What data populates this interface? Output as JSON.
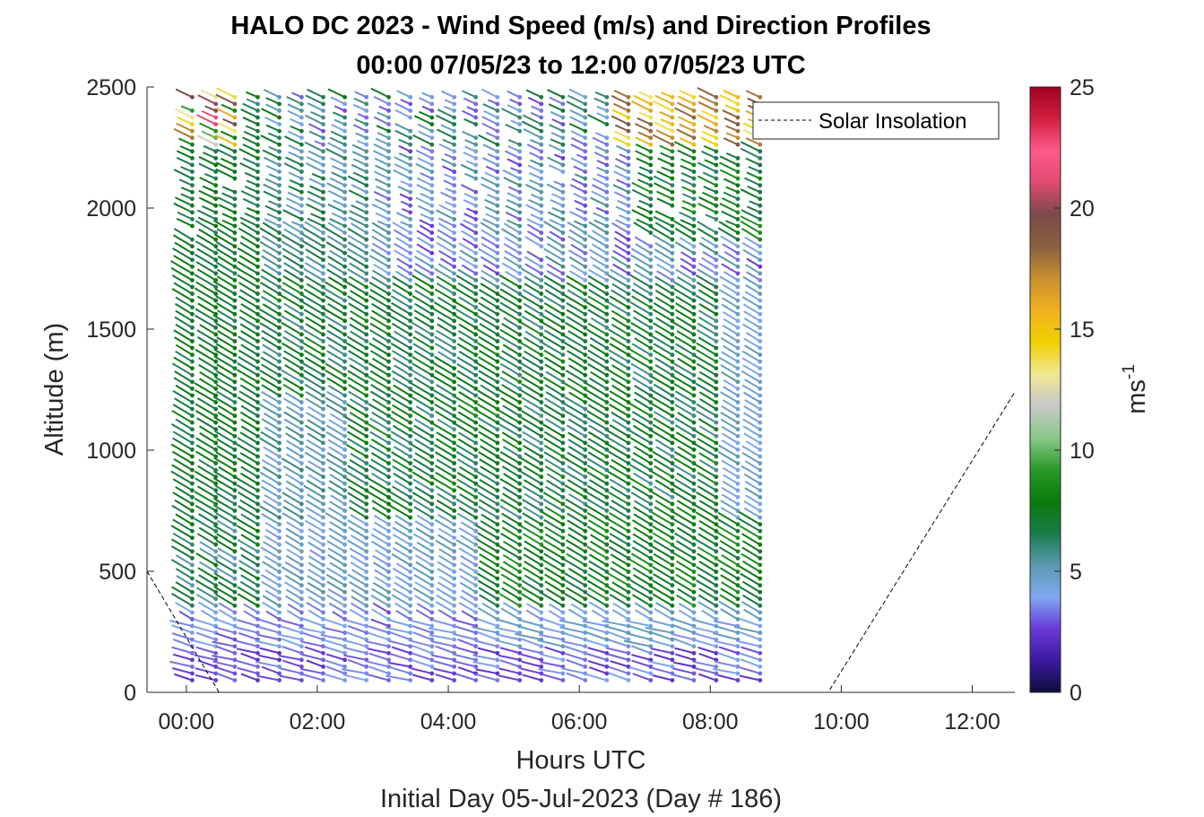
{
  "chart_data": {
    "type": "scatter",
    "subtype": "wind-barb-profile",
    "title_line1": "HALO DC 2023 - Wind Speed (m/s) and Direction Profiles",
    "title_line2": "00:00 07/05/23 to 12:00 07/05/23  UTC",
    "xlabel": "Hours UTC",
    "xlabel2": "Initial Day 05-Jul-2023 (Day # 186)",
    "ylabel": "Altitude (m)",
    "xlim": [
      -0.6,
      12.65
    ],
    "ylim": [
      0,
      2500
    ],
    "x_ticks": [
      0,
      2,
      4,
      6,
      8,
      10,
      12
    ],
    "x_tick_labels": [
      "00:00",
      "02:00",
      "04:00",
      "06:00",
      "08:00",
      "10:00",
      "12:00"
    ],
    "y_ticks": [
      0,
      500,
      1000,
      1500,
      2000,
      2500
    ],
    "y_tick_labels": [
      "0",
      "500",
      "1000",
      "1500",
      "2000",
      "2500"
    ],
    "colorbar": {
      "label": "ms",
      "label_superscript": "-1",
      "range": [
        0,
        25
      ],
      "ticks": [
        0,
        5,
        10,
        15,
        20,
        25
      ],
      "tick_labels": [
        "0",
        "5",
        "10",
        "15",
        "20",
        "25"
      ],
      "colors": [
        "#0d0d3a",
        "#3c1aa0",
        "#6a3ad8",
        "#7fa8f0",
        "#5a9ab0",
        "#1a7a4a",
        "#0a7a0a",
        "#2a9a2a",
        "#8ac88a",
        "#c8c8c8",
        "#f0e890",
        "#f0d000",
        "#f0b020",
        "#c89030",
        "#8a6040",
        "#7a4a4a",
        "#e04a70",
        "#ff5a8a",
        "#d02040",
        "#a00020"
      ]
    },
    "legend": {
      "position": "top-right",
      "entries": [
        "Solar Insolation"
      ]
    },
    "solar_insolation": {
      "x": [
        -0.6,
        0.5,
        9.8,
        12.65
      ],
      "y": [
        500,
        0,
        0,
        1240
      ]
    },
    "barb_profile_times": [
      0.09,
      0.45,
      0.74,
      1.09,
      1.42,
      1.76,
      2.09,
      2.42,
      2.75,
      3.09,
      3.42,
      3.75,
      4.09,
      4.42,
      4.75,
      5.09,
      5.42,
      5.75,
      6.09,
      6.42,
      6.75,
      7.09,
      7.42,
      7.75,
      8.09,
      8.42,
      8.76
    ],
    "barb_altitude_range": [
      50,
      2460
    ],
    "barb_altitude_step": 28,
    "wind_speed_regimes": [
      {
        "layer": "below 300 m",
        "speed_ms": "2-4",
        "color": "#4a2ac8"
      },
      {
        "layer": "300-700 m",
        "speed_ms": "4-7",
        "color": "#7fa8f0"
      },
      {
        "layer": "700-1700 m",
        "speed_ms": "6-9",
        "color": "#1a7a3a"
      },
      {
        "layer": "1700-2500 m (after 03:00)",
        "speed_ms": "2-6",
        "color": "#5a3ad0"
      },
      {
        "layer": "2300-2460 m (07:00-08:45)",
        "speed_ms": "13-20",
        "color": "#f0b020"
      }
    ]
  }
}
